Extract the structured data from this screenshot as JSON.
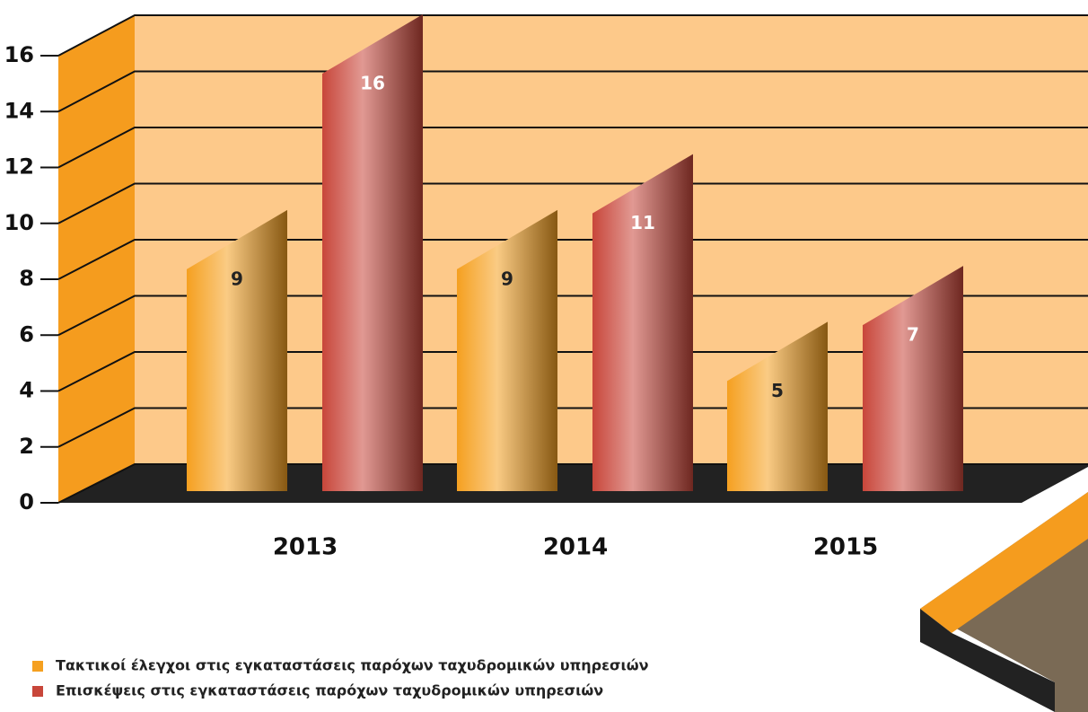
{
  "chart_data": {
    "type": "bar3d",
    "categories": [
      "2013",
      "2014",
      "2015"
    ],
    "series": [
      {
        "name": "Τακτικοί έλεγχοι στις εγκαταστάσεις παρόχων ταχυδρομικών υπηρεσιών",
        "color": "#f5a020",
        "values": [
          9,
          9,
          5
        ]
      },
      {
        "name": "Επισκέψεις στις εγκαταστάσεις παρόχων ταχυδρομικών υπηρεσιών",
        "color": "#c8463a",
        "values": [
          16,
          11,
          7
        ]
      }
    ],
    "ylim": [
      0,
      16
    ],
    "yticks": [
      0,
      2,
      4,
      6,
      8,
      10,
      12,
      14,
      16
    ],
    "grid": true,
    "legend": "bottom-left"
  }
}
